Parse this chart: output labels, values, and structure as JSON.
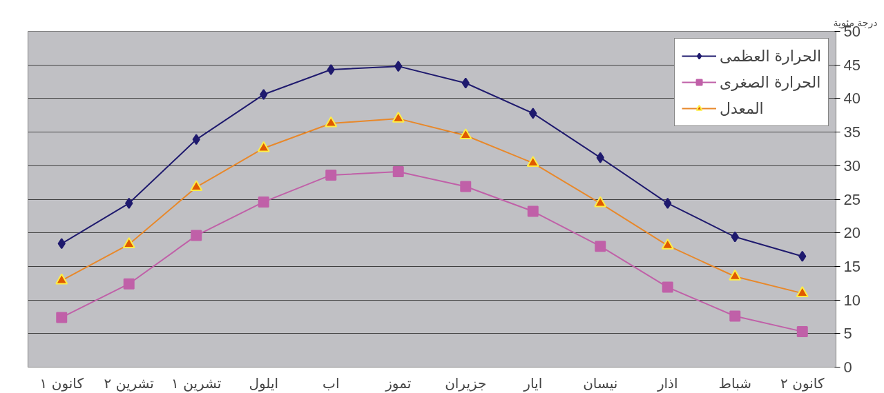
{
  "chart_data": {
    "type": "line",
    "ylabel": "درجة مئوية",
    "categories": [
      "كانون ١",
      "تشرين ٢",
      "تشرين ١",
      "ايلول",
      "اب",
      "تموز",
      "جزيران",
      "ايار",
      "نيسان",
      "اذار",
      "شباط",
      "كانون ٢"
    ],
    "series": [
      {
        "name": "الحرارة العظمى",
        "color": "#1f1a6e",
        "marker": "diamond",
        "values": [
          18.4,
          24.4,
          33.9,
          40.6,
          44.3,
          44.8,
          42.3,
          37.8,
          31.2,
          24.4,
          19.4,
          16.5
        ]
      },
      {
        "name": "الحرارة الصغرى",
        "color": "#c060a8",
        "marker": "square",
        "values": [
          7.4,
          12.4,
          19.6,
          24.6,
          28.6,
          29.1,
          26.9,
          23.2,
          18.0,
          11.9,
          7.6,
          5.3
        ]
      },
      {
        "name": "المعدل",
        "color": "#e8882a",
        "marker": "triangle",
        "values": [
          12.9,
          18.3,
          26.8,
          32.6,
          36.3,
          37.0,
          34.5,
          30.4,
          24.4,
          18.1,
          13.5,
          11.0
        ]
      }
    ],
    "ylim": [
      0,
      50
    ],
    "yticks": [
      0,
      5,
      10,
      15,
      20,
      25,
      30,
      35,
      40,
      45,
      50
    ],
    "grid": "y",
    "legend": "top right",
    "line_style": "solid"
  }
}
